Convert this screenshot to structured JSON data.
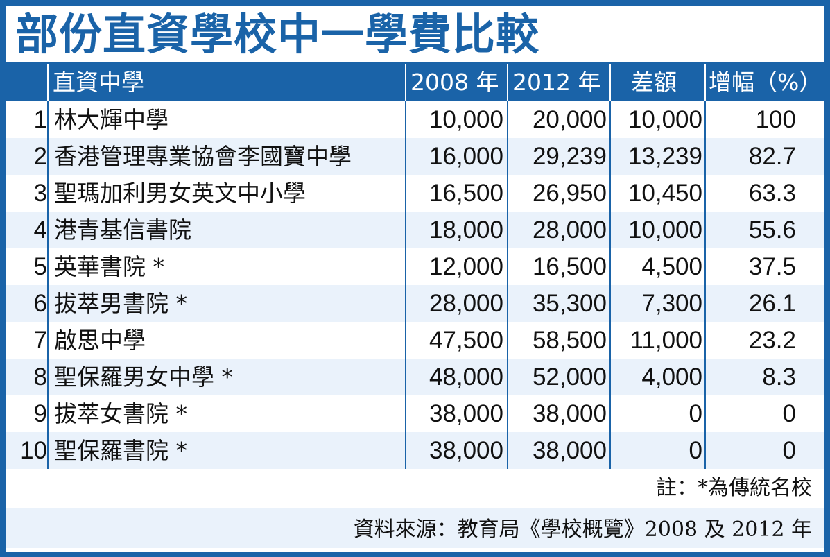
{
  "title": "部份直資學校中一學費比較",
  "headers": {
    "school": "直資中學",
    "y2008": "2008 年",
    "y2012": "2012 年",
    "diff": "差額",
    "increase": "增幅（%）"
  },
  "rows": [
    {
      "no": "1",
      "name": "林大輝中學",
      "y2008": "10,000",
      "y2012": "20,000",
      "diff": "10,000",
      "increase": "100"
    },
    {
      "no": "2",
      "name": "香港管理專業協會李國寶中學",
      "y2008": "16,000",
      "y2012": "29,239",
      "diff": "13,239",
      "increase": "82.7"
    },
    {
      "no": "3",
      "name": "聖瑪加利男女英文中小學",
      "y2008": "16,500",
      "y2012": "26,950",
      "diff": "10,450",
      "increase": "63.3"
    },
    {
      "no": "4",
      "name": "港青基信書院",
      "y2008": "18,000",
      "y2012": "28,000",
      "diff": "10,000",
      "increase": "55.6"
    },
    {
      "no": "5",
      "name": "英華書院 *",
      "y2008": "12,000",
      "y2012": "16,500",
      "diff": "4,500",
      "increase": "37.5"
    },
    {
      "no": "6",
      "name": "拔萃男書院 *",
      "y2008": "28,000",
      "y2012": "35,300",
      "diff": "7,300",
      "increase": "26.1"
    },
    {
      "no": "7",
      "name": "啟思中學",
      "y2008": "47,500",
      "y2012": "58,500",
      "diff": "11,000",
      "increase": "23.2"
    },
    {
      "no": "8",
      "name": "聖保羅男女中學 *",
      "y2008": "48,000",
      "y2012": "52,000",
      "diff": "4,000",
      "increase": "8.3"
    },
    {
      "no": "9",
      "name": "拔萃女書院 *",
      "y2008": "38,000",
      "y2012": "38,000",
      "diff": "0",
      "increase": "0"
    },
    {
      "no": "10",
      "name": "聖保羅書院 *",
      "y2008": "38,000",
      "y2012": "38,000",
      "diff": "0",
      "increase": "0"
    }
  ],
  "note": "註：*為傳統名校",
  "source": "資料來源：教育局《學校概覽》2008 及 2012 年",
  "colors": {
    "frame": "#1a63a8",
    "alt_row": "#eaf2fb"
  }
}
